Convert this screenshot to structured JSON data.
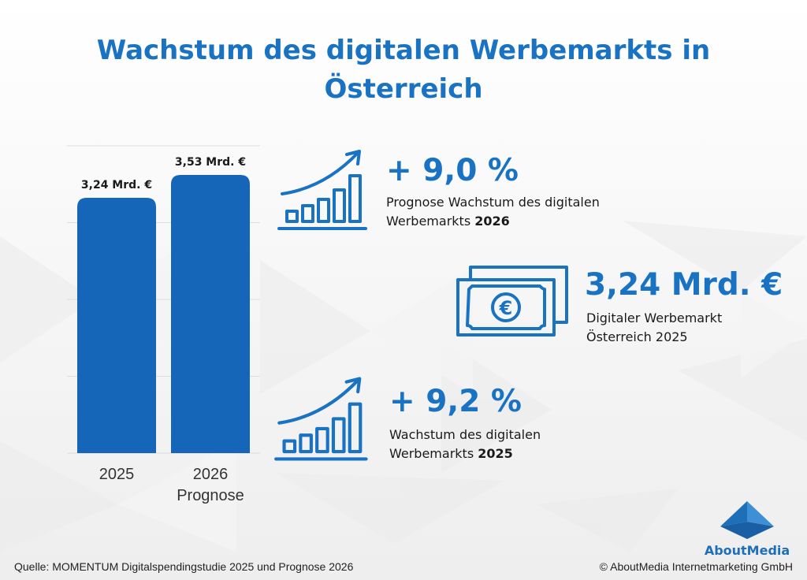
{
  "title": "Wachstum des digitalen Werbemarkts in Österreich",
  "colors": {
    "primary": "#1a73c2",
    "bar": "#1565b8",
    "text": "#1a1a1a"
  },
  "chart_data": {
    "type": "bar",
    "categories": [
      "2025",
      "2026"
    ],
    "category_sublabels": [
      "",
      "Prognose"
    ],
    "values": [
      3.24,
      3.53
    ],
    "value_labels": [
      "3,24 Mrd. €",
      "3,53 Mrd. €"
    ],
    "ylim": [
      0,
      3.9
    ],
    "grid": true
  },
  "stats": [
    {
      "icon": "growth-chart-icon",
      "value": "+ 9,0 %",
      "desc": "Prognose Wachstum des digitalen Werbemarkts",
      "year": "2026"
    },
    {
      "icon": "euro-banknote-icon",
      "value": "3,24 Mrd. €",
      "desc": "Digitaler Werbemarkt Österreich 2025"
    },
    {
      "icon": "growth-chart-icon",
      "value": "+ 9,2 %",
      "desc": "Wachstum des digitalen Werbemarkts",
      "year": "2025"
    }
  ],
  "footer": {
    "source": "Quelle: MOMENTUM Digitalspendingstudie 2025 und Prognose 2026",
    "copyright": "© AboutMedia Internetmarketing GmbH"
  },
  "logo": {
    "text": "AboutMedia",
    "icon": "pyramid-logo-icon"
  }
}
